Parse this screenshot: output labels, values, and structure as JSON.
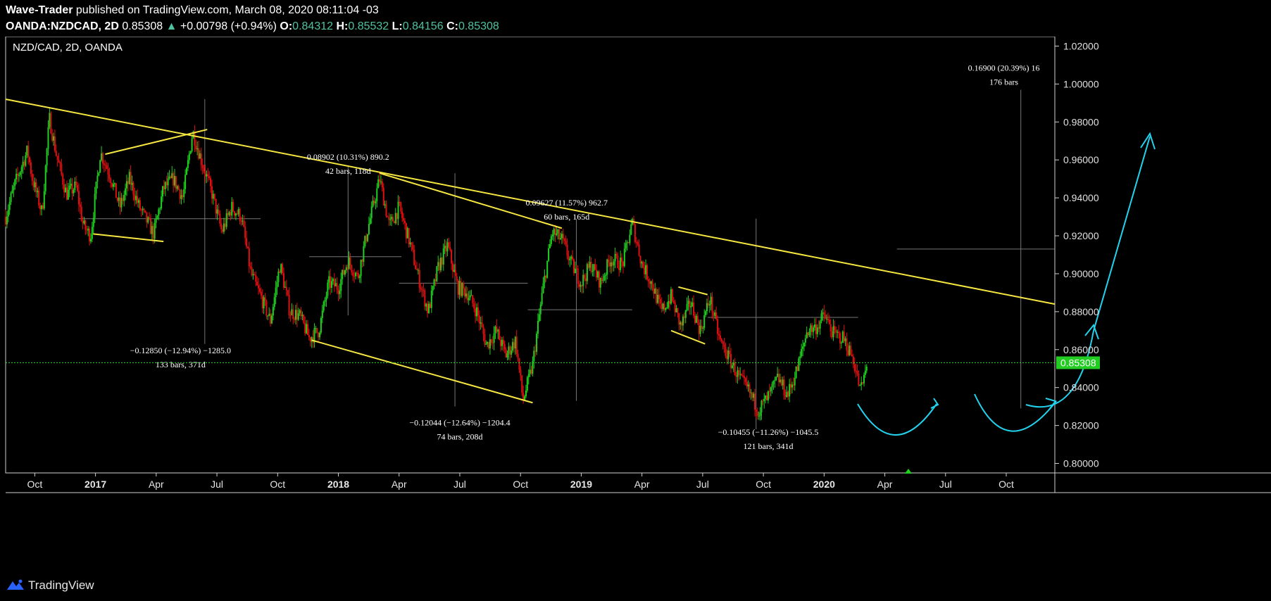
{
  "header": {
    "author": "Wave-Trader",
    "published_text": "published on TradingView.com, March 08, 2020 08:11:04 -03",
    "symbol": "OANDA:NZDCAD, 2D",
    "last": "0.85308",
    "change": "+0.00798 (+0.94%)",
    "o_label": "O:",
    "o_value": "0.84312",
    "h_label": "H:",
    "h_value": "0.85532",
    "l_label": "L:",
    "l_value": "0.84156",
    "c_label": "C:",
    "c_value": "0.85308"
  },
  "chart_data": {
    "type": "candlestick",
    "title": "NZD/CAD, 2D, OANDA",
    "ylim": [
      0.795,
      1.025
    ],
    "y_ticks": [
      "1.02000",
      "1.00000",
      "0.98000",
      "0.96000",
      "0.94000",
      "0.92000",
      "0.90000",
      "0.88000",
      "0.86000",
      "0.84000",
      "0.82000",
      "0.80000"
    ],
    "x_ticks": [
      {
        "label": "Oct",
        "t": 2016.75,
        "bold": false
      },
      {
        "label": "2017",
        "t": 2017.0,
        "bold": true
      },
      {
        "label": "Apr",
        "t": 2017.25,
        "bold": false
      },
      {
        "label": "Jul",
        "t": 2017.5,
        "bold": false
      },
      {
        "label": "Oct",
        "t": 2017.75,
        "bold": false
      },
      {
        "label": "2018",
        "t": 2018.0,
        "bold": true
      },
      {
        "label": "Apr",
        "t": 2018.25,
        "bold": false
      },
      {
        "label": "Jul",
        "t": 2018.5,
        "bold": false
      },
      {
        "label": "Oct",
        "t": 2018.75,
        "bold": false
      },
      {
        "label": "2019",
        "t": 2019.0,
        "bold": true
      },
      {
        "label": "Apr",
        "t": 2019.25,
        "bold": false
      },
      {
        "label": "Jul",
        "t": 2019.5,
        "bold": false
      },
      {
        "label": "Oct",
        "t": 2019.75,
        "bold": false
      },
      {
        "label": "2020",
        "t": 2020.0,
        "bold": true
      },
      {
        "label": "Apr",
        "t": 2020.25,
        "bold": false
      },
      {
        "label": "Jul",
        "t": 2020.5,
        "bold": false
      },
      {
        "label": "Oct",
        "t": 2020.75,
        "bold": false
      }
    ],
    "t_range": [
      2016.63,
      2020.95
    ],
    "current_price": "0.85308",
    "price_path": [
      [
        2016.63,
        0.93
      ],
      [
        2016.67,
        0.948
      ],
      [
        2016.72,
        0.965
      ],
      [
        2016.74,
        0.95
      ],
      [
        2016.78,
        0.932
      ],
      [
        2016.81,
        0.982
      ],
      [
        2016.84,
        0.962
      ],
      [
        2016.88,
        0.942
      ],
      [
        2016.92,
        0.946
      ],
      [
        2016.95,
        0.925
      ],
      [
        2016.98,
        0.92
      ],
      [
        2017.02,
        0.964
      ],
      [
        2017.06,
        0.952
      ],
      [
        2017.1,
        0.935
      ],
      [
        2017.14,
        0.95
      ],
      [
        2017.18,
        0.935
      ],
      [
        2017.24,
        0.921
      ],
      [
        2017.28,
        0.945
      ],
      [
        2017.32,
        0.95
      ],
      [
        2017.36,
        0.94
      ],
      [
        2017.4,
        0.975
      ],
      [
        2017.44,
        0.958
      ],
      [
        2017.48,
        0.942
      ],
      [
        2017.52,
        0.922
      ],
      [
        2017.56,
        0.935
      ],
      [
        2017.6,
        0.93
      ],
      [
        2017.64,
        0.9
      ],
      [
        2017.68,
        0.888
      ],
      [
        2017.72,
        0.875
      ],
      [
        2017.76,
        0.905
      ],
      [
        2017.8,
        0.88
      ],
      [
        2017.84,
        0.878
      ],
      [
        2017.88,
        0.866
      ],
      [
        2017.92,
        0.87
      ],
      [
        2017.96,
        0.895
      ],
      [
        2018.0,
        0.893
      ],
      [
        2018.04,
        0.907
      ],
      [
        2018.08,
        0.898
      ],
      [
        2018.12,
        0.923
      ],
      [
        2018.17,
        0.95
      ],
      [
        2018.21,
        0.925
      ],
      [
        2018.25,
        0.935
      ],
      [
        2018.29,
        0.918
      ],
      [
        2018.33,
        0.898
      ],
      [
        2018.37,
        0.88
      ],
      [
        2018.41,
        0.903
      ],
      [
        2018.45,
        0.915
      ],
      [
        2018.49,
        0.893
      ],
      [
        2018.53,
        0.89
      ],
      [
        2018.57,
        0.88
      ],
      [
        2018.61,
        0.862
      ],
      [
        2018.65,
        0.87
      ],
      [
        2018.69,
        0.857
      ],
      [
        2018.73,
        0.865
      ],
      [
        2018.76,
        0.833
      ],
      [
        2018.8,
        0.852
      ],
      [
        2018.84,
        0.89
      ],
      [
        2018.88,
        0.922
      ],
      [
        2018.92,
        0.918
      ],
      [
        2018.96,
        0.905
      ],
      [
        2019.0,
        0.895
      ],
      [
        2019.04,
        0.905
      ],
      [
        2019.08,
        0.895
      ],
      [
        2019.12,
        0.908
      ],
      [
        2019.17,
        0.905
      ],
      [
        2019.21,
        0.927
      ],
      [
        2019.25,
        0.905
      ],
      [
        2019.29,
        0.895
      ],
      [
        2019.33,
        0.88
      ],
      [
        2019.37,
        0.888
      ],
      [
        2019.41,
        0.872
      ],
      [
        2019.45,
        0.885
      ],
      [
        2019.49,
        0.87
      ],
      [
        2019.53,
        0.887
      ],
      [
        2019.57,
        0.865
      ],
      [
        2019.61,
        0.855
      ],
      [
        2019.65,
        0.845
      ],
      [
        2019.69,
        0.838
      ],
      [
        2019.73,
        0.828
      ],
      [
        2019.77,
        0.835
      ],
      [
        2019.81,
        0.845
      ],
      [
        2019.85,
        0.836
      ],
      [
        2019.89,
        0.85
      ],
      [
        2019.93,
        0.87
      ],
      [
        2019.97,
        0.872
      ],
      [
        2020.0,
        0.878
      ],
      [
        2020.04,
        0.868
      ],
      [
        2020.08,
        0.866
      ],
      [
        2020.12,
        0.855
      ],
      [
        2020.15,
        0.838
      ],
      [
        2020.18,
        0.853
      ]
    ],
    "trendlines": [
      {
        "from": [
          2016.63,
          0.992
        ],
        "to": [
          2020.95,
          0.884
        ],
        "color": "#f5e640"
      },
      {
        "from": [
          2017.04,
          0.963
        ],
        "to": [
          2017.46,
          0.976
        ],
        "color": "#f5e640"
      },
      {
        "from": [
          2016.99,
          0.921
        ],
        "to": [
          2017.28,
          0.917
        ],
        "color": "#f5e640"
      },
      {
        "from": [
          2018.17,
          0.953
        ],
        "to": [
          2018.92,
          0.924
        ],
        "color": "#f5e640"
      },
      {
        "from": [
          2017.89,
          0.865
        ],
        "to": [
          2018.8,
          0.832
        ],
        "color": "#f5e640"
      },
      {
        "from": [
          2019.4,
          0.893
        ],
        "to": [
          2019.52,
          0.889
        ],
        "color": "#f5e640"
      },
      {
        "from": [
          2019.37,
          0.87
        ],
        "to": [
          2019.51,
          0.863
        ],
        "color": "#f5e640"
      }
    ],
    "measurements": [
      {
        "line1": "0.08902 (10.31%) 890.2",
        "line2": "42 bars, 118d",
        "t": 2018.04,
        "p": 0.96
      },
      {
        "line1": "0.09627 (11.57%) 962.7",
        "line2": "60 bars, 165d",
        "t": 2018.94,
        "p": 0.936
      },
      {
        "line1": "−0.12850 (−12.94%) −1285.0",
        "line2": "133 bars, 371d",
        "t": 2017.35,
        "p": 0.858
      },
      {
        "line1": "−0.12044 (−12.64%) −1204.4",
        "line2": "74 bars, 208d",
        "t": 2018.5,
        "p": 0.82
      },
      {
        "line1": "−0.10455 (−11.26%) −1045.5",
        "line2": "121 bars, 341d",
        "t": 2019.77,
        "p": 0.815
      },
      {
        "line1": "0.16900 (20.39%) 16",
        "line2": "176 bars",
        "t": 2020.74,
        "p": 1.007
      }
    ],
    "projection_color": "#22d3ee"
  },
  "footer": {
    "brand": "TradingView"
  }
}
